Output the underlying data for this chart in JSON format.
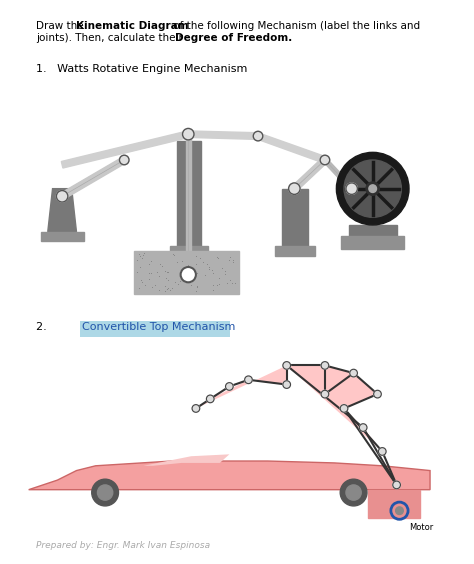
{
  "title_line1": "Draw the ",
  "title_bold1": "Kinematic Diagram",
  "title_line1b": " of the following Mechanism (label the links and",
  "title_line2": "joints). Then, calculate their ",
  "title_bold2": "Degree of Freedom.",
  "section1_label": "1.   Watts Rotative Engine Mechanism",
  "section2_label": "2.  Convertible Top Mechanism",
  "footer": "Prepared by: Engr. Mark Ivan Espinosa",
  "bg_color": "#ffffff",
  "gray_dark": "#808080",
  "gray_medium": "#999999",
  "gray_light": "#c0c0c0",
  "gray_lighter": "#d3d3d3",
  "pink_fill": "#ffb6c1",
  "highlight_cyan": "#87ceeb",
  "black": "#000000"
}
